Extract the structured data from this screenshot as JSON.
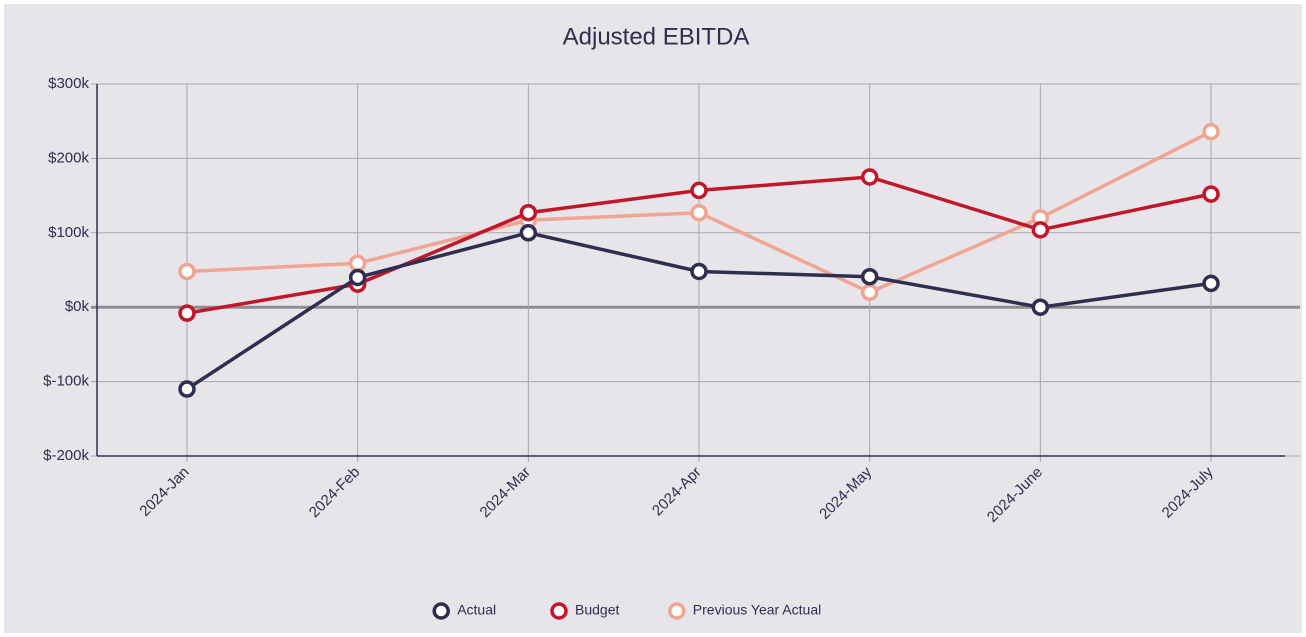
{
  "chart_data": {
    "type": "line",
    "title": "Adjusted EBITDA",
    "categories": [
      "2024-Jan",
      "2024-Feb",
      "2024-Mar",
      "2024-Apr",
      "2024-May",
      "2024-June",
      "2024-July"
    ],
    "series": [
      {
        "name": "Actual",
        "color": "#2e2f4f",
        "values": [
          -110000,
          40000,
          100000,
          48000,
          41000,
          0,
          32000
        ]
      },
      {
        "name": "Budget",
        "color": "#c0172a",
        "values": [
          -8000,
          31000,
          127000,
          157000,
          175000,
          104000,
          152000
        ]
      },
      {
        "name": "Previous Year Actual",
        "color": "#f0a592",
        "values": [
          48000,
          59000,
          117000,
          127000,
          20000,
          120000,
          236000
        ]
      }
    ],
    "ylim": [
      -200000,
      300000
    ],
    "yticks": [
      {
        "value": -200000,
        "label": "$-200k"
      },
      {
        "value": -100000,
        "label": "$-100k"
      },
      {
        "value": 0,
        "label": "$0k"
      },
      {
        "value": 100000,
        "label": "$100k"
      },
      {
        "value": 200000,
        "label": "$200k"
      },
      {
        "value": 300000,
        "label": "$300k"
      }
    ],
    "grid": true,
    "legend": "bottom"
  }
}
